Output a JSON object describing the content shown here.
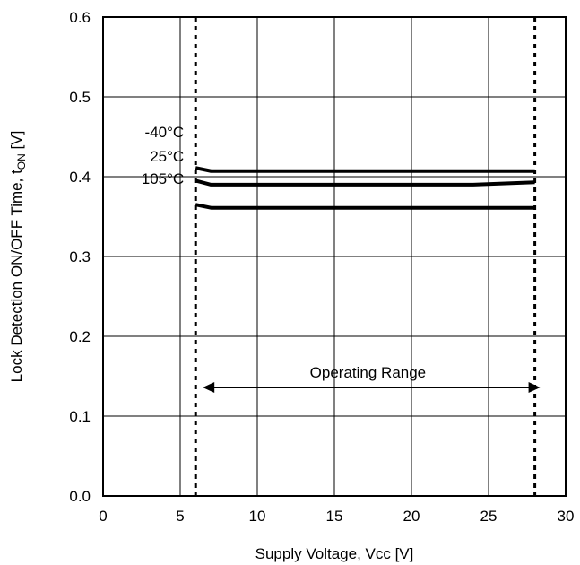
{
  "chart_data": {
    "type": "line",
    "title": "",
    "xlabel": "Supply Voltage, Vcc [V]",
    "ylabel": {
      "main": "Lock Detection ON/OFF Time, t",
      "sub": "ON",
      "unit": " [V]"
    },
    "xlim": [
      0,
      30
    ],
    "ylim": [
      0.0,
      0.6
    ],
    "x_ticks": [
      0,
      5,
      10,
      15,
      20,
      25,
      30
    ],
    "x_tick_labels": [
      "0",
      "5",
      "10",
      "15",
      "20",
      "25",
      "30"
    ],
    "y_ticks": [
      0.0,
      0.1,
      0.2,
      0.3,
      0.4,
      0.5,
      0.6
    ],
    "y_tick_labels": [
      "0.0",
      "0.1",
      "0.2",
      "0.3",
      "0.4",
      "0.5",
      "0.6"
    ],
    "grid": true,
    "series": [
      {
        "name": "-40°C",
        "x": [
          6,
          7,
          8,
          10,
          15,
          20,
          25,
          28
        ],
        "y": [
          0.411,
          0.407,
          0.407,
          0.407,
          0.407,
          0.407,
          0.407,
          0.407
        ]
      },
      {
        "name": "25°C",
        "x": [
          6,
          7,
          8,
          10,
          15,
          20,
          24,
          28
        ],
        "y": [
          0.395,
          0.39,
          0.39,
          0.39,
          0.39,
          0.39,
          0.39,
          0.393
        ]
      },
      {
        "name": "105°C",
        "x": [
          6,
          7,
          8,
          10,
          15,
          20,
          25,
          28
        ],
        "y": [
          0.365,
          0.361,
          0.361,
          0.361,
          0.361,
          0.361,
          0.361,
          0.361
        ]
      }
    ],
    "operating_range": {
      "label": "Operating Range",
      "x": [
        6,
        28
      ],
      "arrow_y": 0.136
    }
  }
}
